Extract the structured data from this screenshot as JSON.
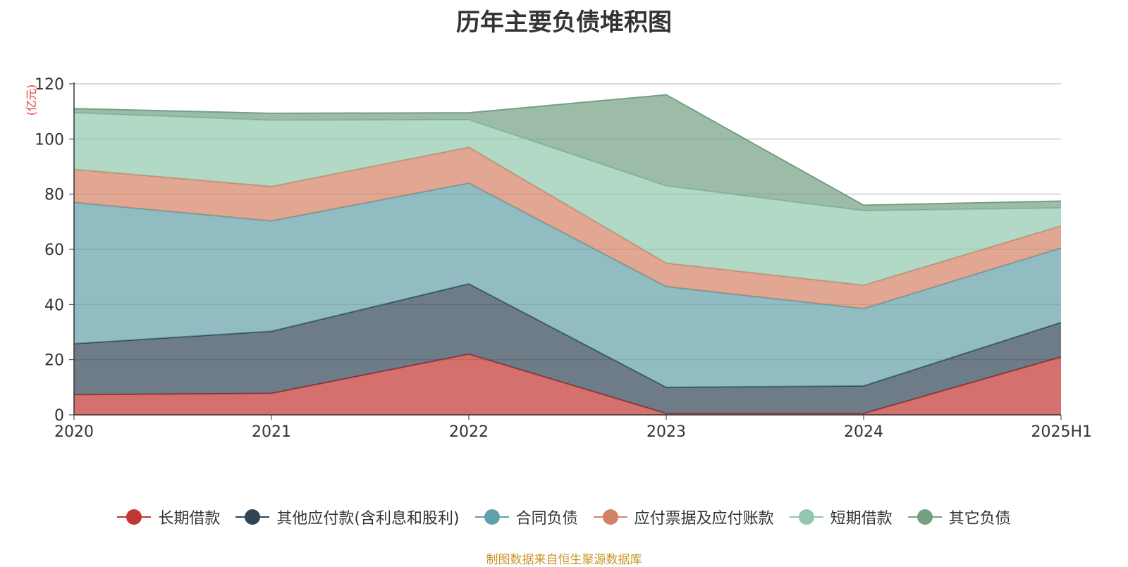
{
  "chart_data": {
    "type": "area",
    "stacked": true,
    "title": "历年主要负债堆积图",
    "ylabel": "(亿元)",
    "xlabel": "",
    "ylim": [
      0,
      120
    ],
    "yticks": [
      0,
      20,
      40,
      60,
      80,
      100,
      120
    ],
    "categories": [
      "2020",
      "2021",
      "2022",
      "2023",
      "2024",
      "2025H1"
    ],
    "grid": true,
    "legend_position": "bottom",
    "series": [
      {
        "name": "长期借款",
        "values": [
          7.3,
          7.8,
          22.0,
          0.5,
          0.5,
          21.0
        ],
        "color": "#c23531"
      },
      {
        "name": "其他应付款(含利息和股利)",
        "values": [
          18.5,
          22.5,
          25.5,
          9.5,
          10.0,
          12.5
        ],
        "color": "#2f4554"
      },
      {
        "name": "合同负债",
        "values": [
          51.2,
          40.0,
          36.5,
          36.5,
          28.0,
          27.0
        ],
        "color": "#61a0a8"
      },
      {
        "name": "应付票据及应付账款",
        "values": [
          12.0,
          12.5,
          13.0,
          8.5,
          8.5,
          8.0
        ],
        "color": "#d48265"
      },
      {
        "name": "短期借款",
        "values": [
          20.5,
          24.0,
          10.0,
          28.0,
          27.0,
          6.5
        ],
        "color": "#91c7ae"
      },
      {
        "name": "其它负债",
        "values": [
          1.5,
          2.5,
          2.5,
          33.0,
          2.0,
          2.5
        ],
        "color": "#749f83"
      }
    ]
  },
  "footer": {
    "source": "制图数据来自恒生聚源数据库"
  }
}
